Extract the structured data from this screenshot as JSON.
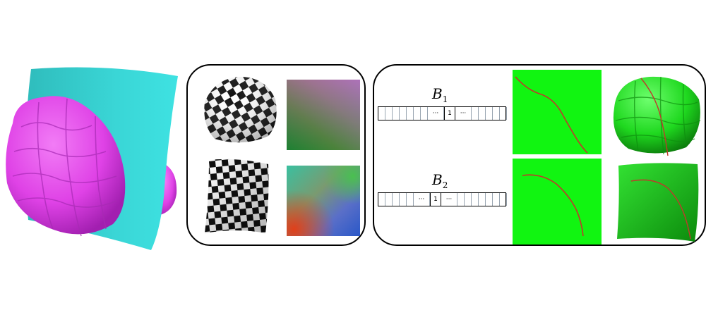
{
  "left_panel": {
    "object": "bumpy-magenta-ellipsoid",
    "surface": "cyan-parametric-patch",
    "colors": {
      "object": "#e04ce8",
      "surface": "#38dada"
    }
  },
  "middle_panel": {
    "images": [
      "checkerboard-dome",
      "uv-color-map",
      "checkerboard-flat",
      "normal-color-map"
    ]
  },
  "right_panel": {
    "rows": [
      {
        "label_base": "B",
        "label_sub": "1",
        "ellipsis_left": "···",
        "bit": "1",
        "ellipsis_right": "···"
      },
      {
        "label_base": "B",
        "label_sub": "2",
        "ellipsis_left": "···",
        "bit": "1",
        "ellipsis_right": "···"
      }
    ],
    "colors": {
      "green": "#11f511",
      "curve": "#c0392b"
    }
  }
}
